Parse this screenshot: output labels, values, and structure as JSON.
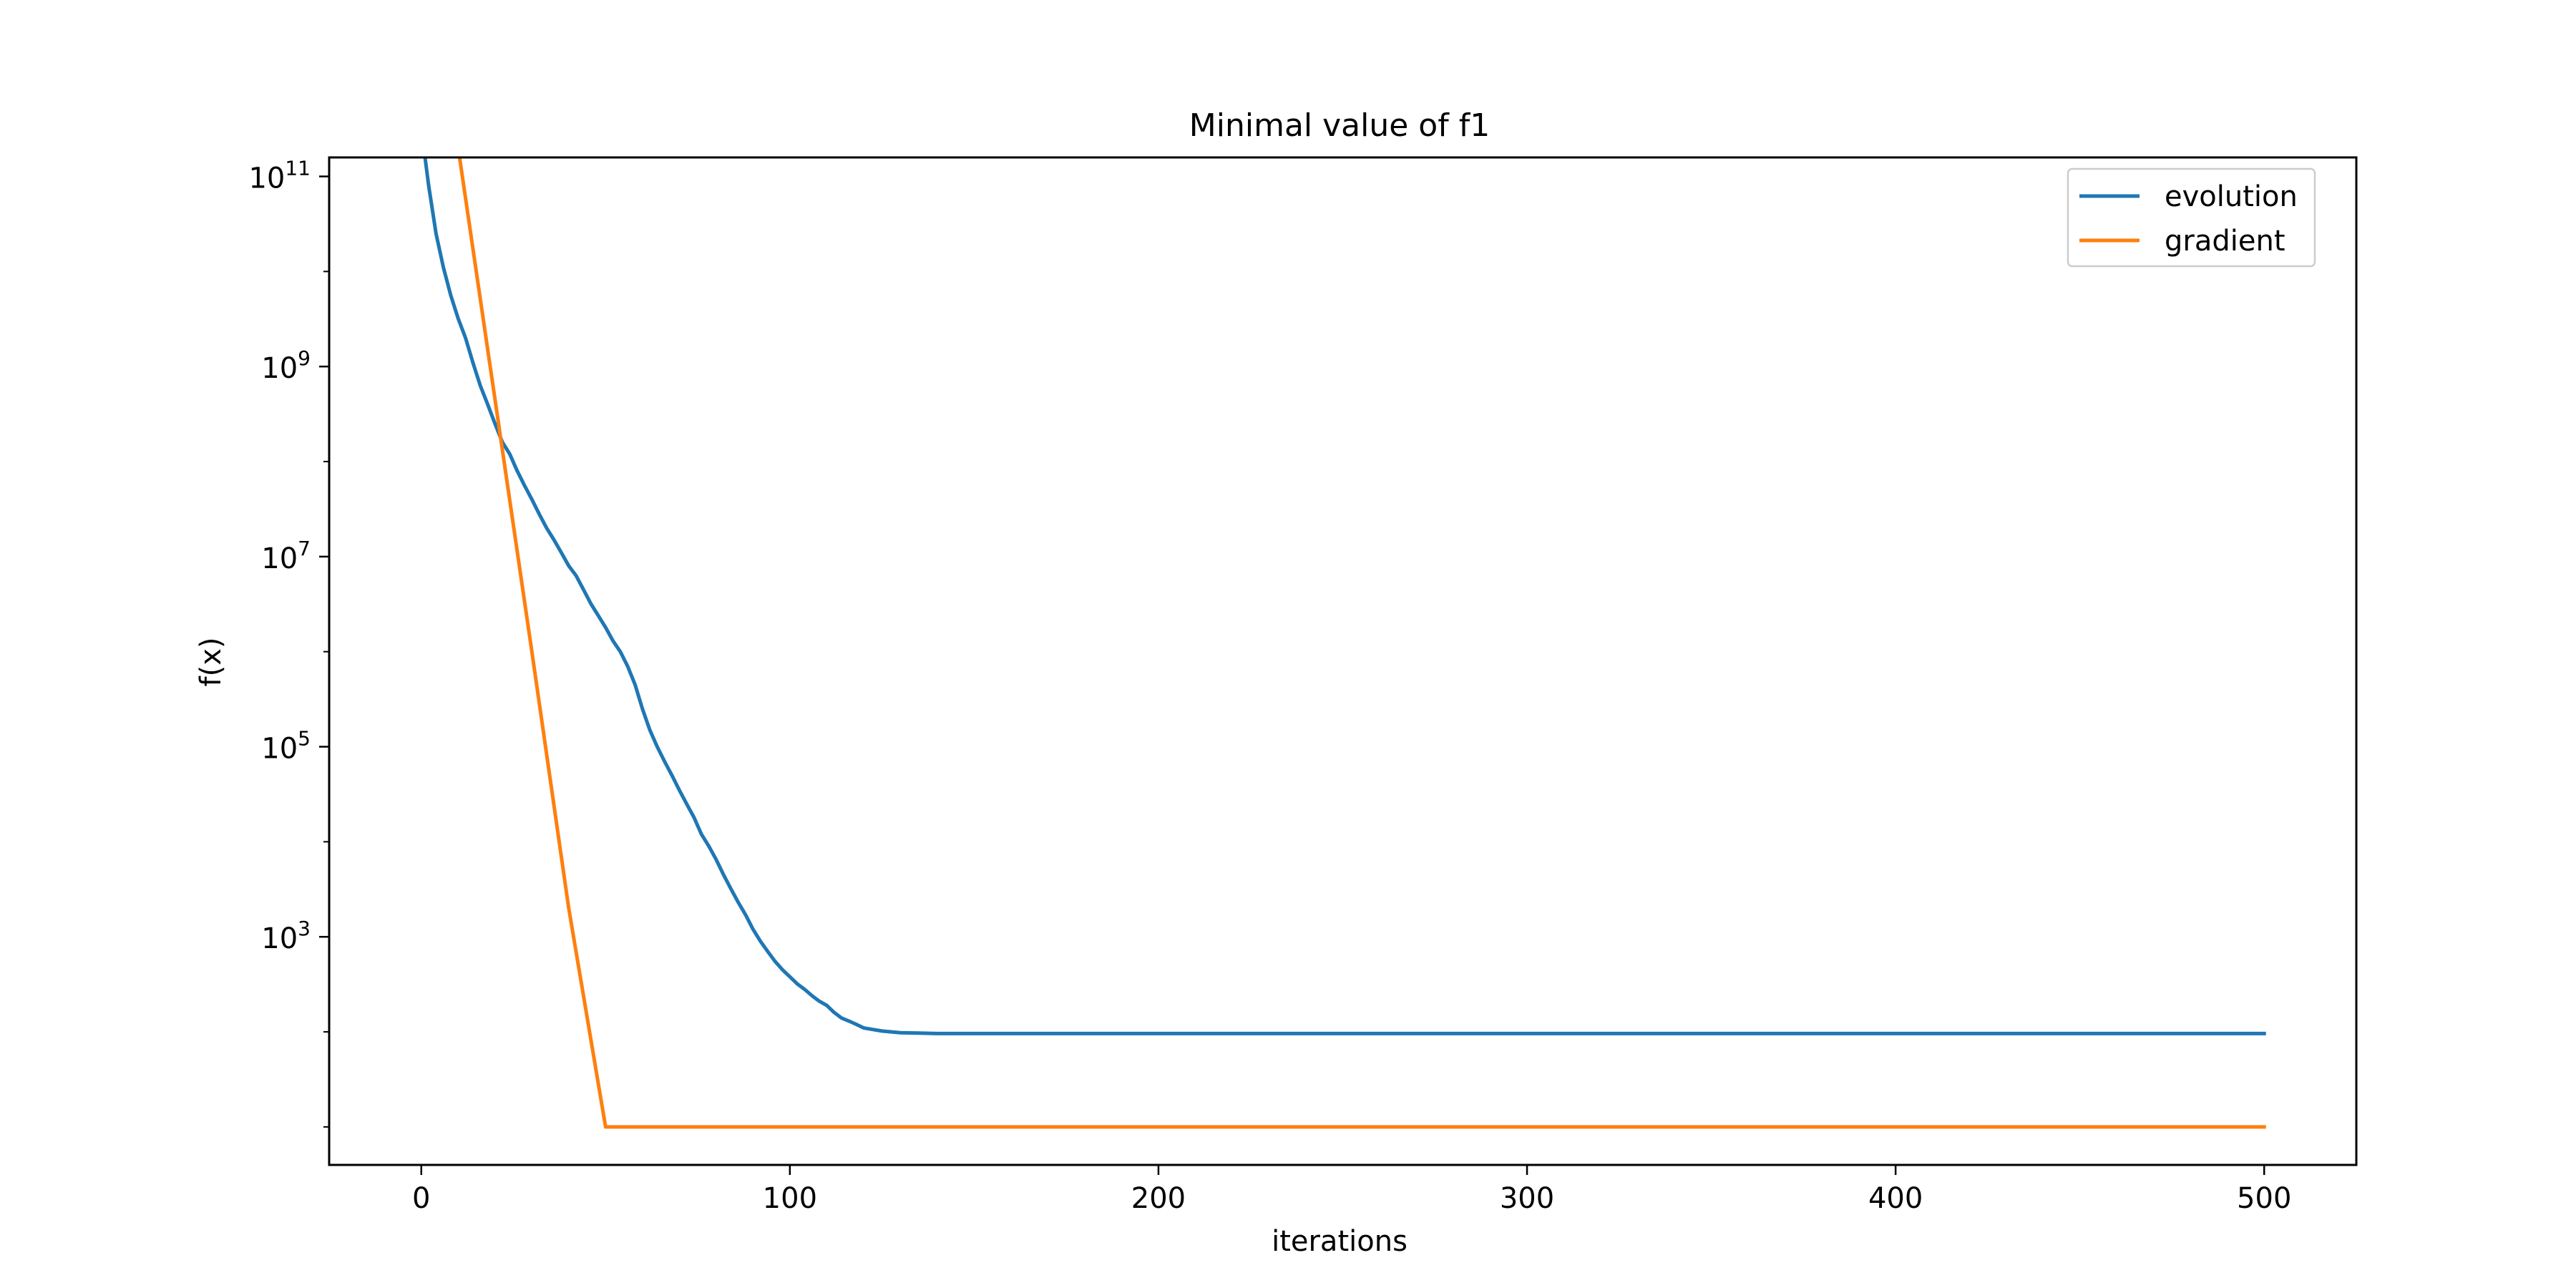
{
  "chart_data": {
    "type": "line",
    "title": "Minimal value of f1",
    "xlabel": "iterations",
    "ylabel": "f(x)",
    "xlim": [
      -25,
      525
    ],
    "ylim_log10": [
      0.6,
      11.2
    ],
    "yscale": "log",
    "grid": false,
    "legend_position": "top-right",
    "x_ticks": [
      {
        "value": 0,
        "label": "0"
      },
      {
        "value": 100,
        "label": "100"
      },
      {
        "value": 200,
        "label": "200"
      },
      {
        "value": 300,
        "label": "300"
      },
      {
        "value": 400,
        "label": "400"
      },
      {
        "value": 500,
        "label": "500"
      }
    ],
    "y_ticks": [
      {
        "value": 1000,
        "base": "10",
        "exponent": "3"
      },
      {
        "value": 100000,
        "base": "10",
        "exponent": "5"
      },
      {
        "value": 10000000,
        "base": "10",
        "exponent": "7"
      },
      {
        "value": 1000000000,
        "base": "10",
        "exponent": "9"
      },
      {
        "value": 100000000000,
        "base": "10",
        "exponent": "11"
      }
    ],
    "series": [
      {
        "name": "evolution",
        "color": "#1f77b4",
        "x": [
          0,
          2,
          4,
          6,
          8,
          10,
          12,
          14,
          16,
          18,
          20,
          22,
          24,
          26,
          28,
          30,
          32,
          34,
          36,
          38,
          40,
          42,
          44,
          46,
          48,
          50,
          52,
          54,
          56,
          58,
          60,
          62,
          64,
          66,
          68,
          70,
          72,
          74,
          76,
          78,
          80,
          82,
          84,
          86,
          88,
          90,
          92,
          94,
          96,
          98,
          100,
          102,
          104,
          106,
          108,
          110,
          112,
          114,
          116,
          118,
          120,
          125,
          130,
          135,
          140,
          150,
          160,
          200,
          300,
          400,
          500
        ],
        "y": [
          320000000000.0,
          80000000000.0,
          25000000000.0,
          11000000000.0,
          5600000000.0,
          3200000000.0,
          2000000000.0,
          1100000000.0,
          630000000.0,
          400000000.0,
          250000000.0,
          160000000.0,
          120000000.0,
          80000000.0,
          56000000.0,
          40000000.0,
          28000000.0,
          20000000.0,
          15000000.0,
          11000000.0,
          8000000.0,
          6300000.0,
          4500000.0,
          3200000.0,
          2400000.0,
          1800000.0,
          1300000.0,
          1000000.0,
          700000.0,
          450000.0,
          250000.0,
          150000.0,
          100000.0,
          70000.0,
          50000.0,
          35000.0,
          25000.0,
          18000.0,
          12000.0,
          9000.0,
          6500.0,
          4500.0,
          3200.0,
          2300.0,
          1700.0,
          1200.0,
          900.0,
          700.0,
          550.0,
          450.0,
          380.0,
          320.0,
          280.0,
          240.0,
          210.0,
          190.0,
          160.0,
          140.0,
          130.0,
          120.0,
          110.0,
          102.0,
          98.0,
          97.0,
          96.0,
          96.0,
          96.0,
          96.0,
          96.0,
          96.0,
          96.0
        ]
      },
      {
        "name": "gradient",
        "color": "#ff7f0e",
        "x": [
          0,
          2,
          4,
          6,
          8,
          10,
          20,
          30,
          40,
          50,
          55,
          58,
          60,
          62,
          65,
          70,
          100,
          200,
          300,
          400,
          500
        ],
        "y": [
          350000000000.0,
          350000000000.0,
          350000000000.0,
          350000000000.0,
          350000000000.0,
          200000000000.0,
          450000000.0,
          1000000.0,
          2000.0,
          10.0,
          10.0,
          10.0,
          10.0,
          10.0,
          10.0,
          10.0,
          10.0,
          10.0,
          10.0,
          10.0,
          10.0
        ]
      }
    ]
  }
}
